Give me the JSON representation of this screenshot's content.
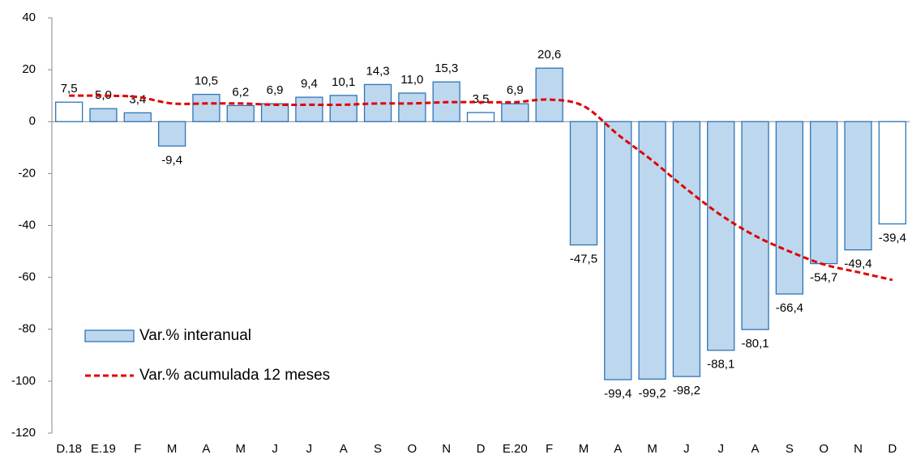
{
  "chart_data": {
    "type": "bar",
    "categories": [
      "D.18",
      "E.19",
      "F",
      "M",
      "A",
      "M",
      "J",
      "J",
      "A",
      "S",
      "O",
      "N",
      "D",
      "E.20",
      "F",
      "M",
      "A",
      "M",
      "J",
      "J",
      "A",
      "S",
      "O",
      "N",
      "D"
    ],
    "series": [
      {
        "name": "Var.% interanual",
        "type": "bar",
        "color": "#bdd7ee",
        "stroke": "#2e75b6",
        "colors": [
          "#ffffff",
          "#bdd7ee",
          "#bdd7ee",
          "#bdd7ee",
          "#bdd7ee",
          "#bdd7ee",
          "#bdd7ee",
          "#bdd7ee",
          "#bdd7ee",
          "#bdd7ee",
          "#bdd7ee",
          "#bdd7ee",
          "#ffffff",
          "#bdd7ee",
          "#bdd7ee",
          "#bdd7ee",
          "#bdd7ee",
          "#bdd7ee",
          "#bdd7ee",
          "#bdd7ee",
          "#bdd7ee",
          "#bdd7ee",
          "#bdd7ee",
          "#bdd7ee",
          "#ffffff"
        ],
        "values": [
          7.5,
          5.0,
          3.4,
          -9.4,
          10.5,
          6.2,
          6.9,
          9.4,
          10.1,
          14.3,
          11.0,
          15.3,
          3.5,
          6.9,
          20.6,
          -47.5,
          -99.4,
          -99.2,
          -98.2,
          -88.1,
          -80.1,
          -66.4,
          -54.7,
          -49.4,
          -39.4
        ],
        "value_labels": [
          "7,5",
          "5,0",
          "3,4",
          "-9,4",
          "10,5",
          "6,2",
          "6,9",
          "9,4",
          "10,1",
          "14,3",
          "11,0",
          "15,3",
          "3,5",
          "6,9",
          "20,6",
          "-47,5",
          "-99,4",
          "-99,2",
          "-98,2",
          "-88,1",
          "-80,1",
          "-66,4",
          "-54,7",
          "-49,4",
          "-39,4"
        ]
      },
      {
        "name": "Var.% acumulada 12 meses",
        "type": "line",
        "color": "#e00000",
        "line_style": "dashed",
        "values": [
          10,
          10,
          9.5,
          7,
          7,
          7,
          6.5,
          6.5,
          6.5,
          7,
          7,
          7.5,
          7.5,
          7.5,
          8.5,
          6,
          -5,
          -15,
          -26,
          -36,
          -44,
          -50,
          -55,
          -58,
          -61
        ]
      }
    ],
    "ylim": [
      -120,
      40
    ],
    "yticks": [
      -120,
      -100,
      -80,
      -60,
      -40,
      -20,
      0,
      20,
      40
    ],
    "grid": false,
    "legend": "lower left"
  }
}
